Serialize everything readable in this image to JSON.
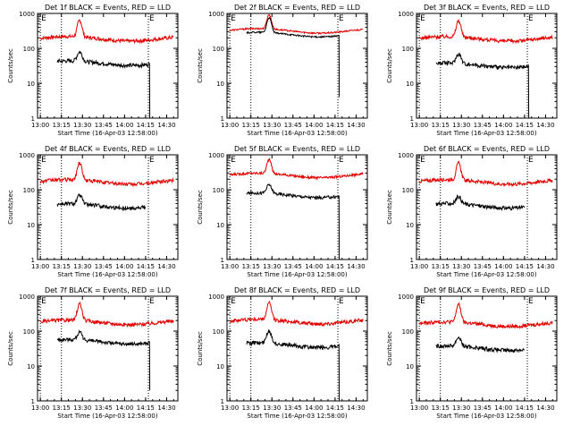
{
  "figure": {
    "background": "#ffffff",
    "colors": {
      "events": "#000000",
      "lld": "#e00000",
      "axes": "#000000"
    }
  },
  "chart_data": [
    {
      "type": "line",
      "panel": "1",
      "title": "Det 1f BLACK = Events, RED = LLD",
      "xlabel": "Start Time (16-Apr-03 12:58:00)",
      "ylabel": "Counts/sec",
      "yscale": "log",
      "ylim": [
        1,
        1000
      ],
      "xlim_minutes": [
        0,
        100
      ],
      "x_tick_labels": [
        "13:00",
        "13:15",
        "13:30",
        "13:45",
        "14:00",
        "14:15",
        "14:30"
      ],
      "y_tick_labels": [
        "1",
        "10",
        "100",
        "1000"
      ],
      "vlines_minutes": [
        2,
        17,
        79
      ],
      "markers": [
        {
          "label": "E",
          "at_minutes": 2
        },
        {
          "label": "E",
          "at_minutes": 79
        }
      ],
      "series": [
        {
          "name": "LLD",
          "color": "#e00000",
          "start_min": 2,
          "end_min": 97,
          "baseline": 190,
          "peak": 620,
          "peak_at_min": 30,
          "peak_width": 1.4,
          "noise": 0.12
        },
        {
          "name": "Events",
          "color": "#000000",
          "start_min": 14,
          "end_min": 80,
          "baseline": 38,
          "peak": 75,
          "peak_at_min": 30,
          "peak_width": 1.6,
          "noise": 0.13,
          "end_drop_to": 1.0
        }
      ]
    },
    {
      "type": "line",
      "panel": "2",
      "title": "Det 2f BLACK = Events, RED = LLD",
      "xlabel": "Start Time (16-Apr-03 12:58:00)",
      "ylabel": "Counts/sec",
      "yscale": "log",
      "ylim": [
        1,
        1000
      ],
      "xlim_minutes": [
        0,
        100
      ],
      "x_tick_labels": [
        "13:00",
        "13:15",
        "13:30",
        "13:45",
        "14:00",
        "14:15",
        "14:30"
      ],
      "y_tick_labels": [
        "1",
        "10",
        "100",
        "1000"
      ],
      "vlines_minutes": [
        2,
        17,
        79
      ],
      "markers": [
        {
          "label": "E",
          "at_minutes": 2
        },
        {
          "label": "E",
          "at_minutes": 79
        }
      ],
      "series": [
        {
          "name": "LLD",
          "color": "#e00000",
          "start_min": 2,
          "end_min": 97,
          "baseline": 320,
          "peak": 880,
          "peak_at_min": 30,
          "peak_width": 1.4,
          "noise": 0.05
        },
        {
          "name": "Events",
          "color": "#000000",
          "start_min": 14,
          "end_min": 80,
          "baseline": 250,
          "peak": 720,
          "peak_at_min": 30,
          "peak_width": 1.4,
          "noise": 0.05,
          "end_drop_to": 4.0
        }
      ]
    },
    {
      "type": "line",
      "panel": "3",
      "title": "Det 3f BLACK = Events, RED = LLD",
      "xlabel": "Start Time (16-Apr-03 12:58:00)",
      "ylabel": "Counts/sec",
      "yscale": "log",
      "ylim": [
        1,
        1000
      ],
      "xlim_minutes": [
        0,
        100
      ],
      "x_tick_labels": [
        "13:00",
        "13:15",
        "13:30",
        "13:45",
        "14:00",
        "14:15",
        "14:30"
      ],
      "y_tick_labels": [
        "1",
        "10",
        "100",
        "1000"
      ],
      "vlines_minutes": [
        2,
        17,
        79
      ],
      "markers": [
        {
          "label": "E",
          "at_minutes": 2
        },
        {
          "label": "E",
          "at_minutes": 79
        }
      ],
      "series": [
        {
          "name": "LLD",
          "color": "#e00000",
          "start_min": 2,
          "end_min": 97,
          "baseline": 190,
          "peak": 600,
          "peak_at_min": 30,
          "peak_width": 1.4,
          "noise": 0.12
        },
        {
          "name": "Events",
          "color": "#000000",
          "start_min": 14,
          "end_min": 80,
          "baseline": 33,
          "peak": 65,
          "peak_at_min": 30,
          "peak_width": 1.6,
          "noise": 0.13,
          "end_drop_to": 1.0
        }
      ]
    },
    {
      "type": "line",
      "panel": "4",
      "title": "Det 4f BLACK = Events, RED = LLD",
      "xlabel": "Start Time (16-Apr-03 12:58:00)",
      "ylabel": "Counts/sec",
      "yscale": "log",
      "ylim": [
        1,
        1000
      ],
      "xlim_minutes": [
        0,
        100
      ],
      "x_tick_labels": [
        "13:00",
        "13:15",
        "13:30",
        "13:45",
        "14:00",
        "14:15",
        "14:30"
      ],
      "y_tick_labels": [
        "1",
        "10",
        "100",
        "1000"
      ],
      "vlines_minutes": [
        2,
        17,
        79
      ],
      "markers": [
        {
          "label": "E",
          "at_minutes": 2
        },
        {
          "label": "E",
          "at_minutes": 79
        }
      ],
      "series": [
        {
          "name": "LLD",
          "color": "#e00000",
          "start_min": 2,
          "end_min": 97,
          "baseline": 170,
          "peak": 580,
          "peak_at_min": 30,
          "peak_width": 1.4,
          "noise": 0.12
        },
        {
          "name": "Events",
          "color": "#000000",
          "start_min": 14,
          "end_min": 77,
          "baseline": 35,
          "peak": 65,
          "peak_at_min": 30,
          "peak_width": 1.6,
          "noise": 0.13,
          "end_drop_to": null
        }
      ]
    },
    {
      "type": "line",
      "panel": "5",
      "title": "Det 5f BLACK = Events, RED = LLD",
      "xlabel": "Start Time (16-Apr-03 12:58:00)",
      "ylabel": "Counts/sec",
      "yscale": "log",
      "ylim": [
        1,
        1000
      ],
      "xlim_minutes": [
        0,
        100
      ],
      "x_tick_labels": [
        "13:00",
        "13:15",
        "13:30",
        "13:45",
        "14:00",
        "14:15",
        "14:30"
      ],
      "y_tick_labels": [
        "1",
        "10",
        "100",
        "1000"
      ],
      "vlines_minutes": [
        2,
        17,
        79
      ],
      "markers": [
        {
          "label": "E",
          "at_minutes": 2
        },
        {
          "label": "E",
          "at_minutes": 79
        }
      ],
      "series": [
        {
          "name": "LLD",
          "color": "#e00000",
          "start_min": 2,
          "end_min": 97,
          "baseline": 260,
          "peak": 700,
          "peak_at_min": 30,
          "peak_width": 1.4,
          "noise": 0.08
        },
        {
          "name": "Events",
          "color": "#000000",
          "start_min": 14,
          "end_min": 80,
          "baseline": 70,
          "peak": 130,
          "peak_at_min": 30,
          "peak_width": 1.6,
          "noise": 0.1,
          "end_drop_to": 1.0
        }
      ]
    },
    {
      "type": "line",
      "panel": "6",
      "title": "Det 6f BLACK = Events, RED = LLD",
      "xlabel": "Start Time (16-Apr-03 12:58:00)",
      "ylabel": "Counts/sec",
      "yscale": "log",
      "ylim": [
        1,
        1000
      ],
      "xlim_minutes": [
        0,
        100
      ],
      "x_tick_labels": [
        "13:00",
        "13:15",
        "13:30",
        "13:45",
        "14:00",
        "14:15",
        "14:30"
      ],
      "y_tick_labels": [
        "1",
        "10",
        "100",
        "1000"
      ],
      "vlines_minutes": [
        2,
        17,
        79
      ],
      "markers": [
        {
          "label": "E",
          "at_minutes": 2
        },
        {
          "label": "E",
          "at_minutes": 79
        }
      ],
      "series": [
        {
          "name": "LLD",
          "color": "#e00000",
          "start_min": 2,
          "end_min": 97,
          "baseline": 170,
          "peak": 560,
          "peak_at_min": 30,
          "peak_width": 1.4,
          "noise": 0.12
        },
        {
          "name": "Events",
          "color": "#000000",
          "start_min": 14,
          "end_min": 77,
          "baseline": 35,
          "peak": 60,
          "peak_at_min": 30,
          "peak_width": 1.6,
          "noise": 0.13,
          "end_drop_to": null
        }
      ]
    },
    {
      "type": "line",
      "panel": "7",
      "title": "Det 7f BLACK = Events, RED = LLD",
      "xlabel": "Start Time (16-Apr-03 12:58:00)",
      "ylabel": "Counts/sec",
      "yscale": "log",
      "ylim": [
        1,
        1000
      ],
      "xlim_minutes": [
        0,
        100
      ],
      "x_tick_labels": [
        "13:00",
        "13:15",
        "13:30",
        "13:45",
        "14:00",
        "14:15",
        "14:30"
      ],
      "y_tick_labels": [
        "1",
        "10",
        "100",
        "1000"
      ],
      "vlines_minutes": [
        2,
        17,
        79
      ],
      "markers": [
        {
          "label": "E",
          "at_minutes": 2
        },
        {
          "label": "E",
          "at_minutes": 79
        }
      ],
      "series": [
        {
          "name": "LLD",
          "color": "#e00000",
          "start_min": 2,
          "end_min": 97,
          "baseline": 180,
          "peak": 580,
          "peak_at_min": 30,
          "peak_width": 1.4,
          "noise": 0.12
        },
        {
          "name": "Events",
          "color": "#000000",
          "start_min": 14,
          "end_min": 80,
          "baseline": 50,
          "peak": 85,
          "peak_at_min": 30,
          "peak_width": 1.6,
          "noise": 0.12,
          "end_drop_to": 2.0
        }
      ]
    },
    {
      "type": "line",
      "panel": "8",
      "title": "Det 8f BLACK = Events, RED = LLD",
      "xlabel": "Start Time (16-Apr-03 12:58:00)",
      "ylabel": "Counts/sec",
      "yscale": "log",
      "ylim": [
        1,
        1000
      ],
      "xlim_minutes": [
        0,
        100
      ],
      "x_tick_labels": [
        "13:00",
        "13:15",
        "13:30",
        "13:45",
        "14:00",
        "14:15",
        "14:30"
      ],
      "y_tick_labels": [
        "1",
        "10",
        "100",
        "1000"
      ],
      "vlines_minutes": [
        2,
        17,
        79
      ],
      "markers": [
        {
          "label": "E",
          "at_minutes": 2
        },
        {
          "label": "E",
          "at_minutes": 79
        }
      ],
      "series": [
        {
          "name": "LLD",
          "color": "#e00000",
          "start_min": 2,
          "end_min": 97,
          "baseline": 190,
          "peak": 620,
          "peak_at_min": 30,
          "peak_width": 1.4,
          "noise": 0.12
        },
        {
          "name": "Events",
          "color": "#000000",
          "start_min": 14,
          "end_min": 80,
          "baseline": 40,
          "peak": 95,
          "peak_at_min": 30,
          "peak_width": 1.6,
          "noise": 0.13,
          "end_drop_to": 1.0
        }
      ]
    },
    {
      "type": "line",
      "panel": "9",
      "title": "Det 9f BLACK = Events, RED = LLD",
      "xlabel": "Start Time (16-Apr-03 12:58:00)",
      "ylabel": "Counts/sec",
      "yscale": "log",
      "ylim": [
        1,
        1000
      ],
      "xlim_minutes": [
        0,
        100
      ],
      "x_tick_labels": [
        "13:00",
        "13:15",
        "13:30",
        "13:45",
        "14:00",
        "14:15",
        "14:30"
      ],
      "y_tick_labels": [
        "1",
        "10",
        "100",
        "1000"
      ],
      "vlines_minutes": [
        2,
        17,
        79
      ],
      "markers": [
        {
          "label": "E",
          "at_minutes": 2
        },
        {
          "label": "E",
          "at_minutes": 79
        }
      ],
      "series": [
        {
          "name": "LLD",
          "color": "#e00000",
          "start_min": 2,
          "end_min": 97,
          "baseline": 160,
          "peak": 560,
          "peak_at_min": 30,
          "peak_width": 1.4,
          "noise": 0.12
        },
        {
          "name": "Events",
          "color": "#000000",
          "start_min": 14,
          "end_min": 77,
          "baseline": 33,
          "peak": 62,
          "peak_at_min": 30,
          "peak_width": 1.6,
          "noise": 0.13,
          "end_drop_to": null
        }
      ]
    }
  ]
}
